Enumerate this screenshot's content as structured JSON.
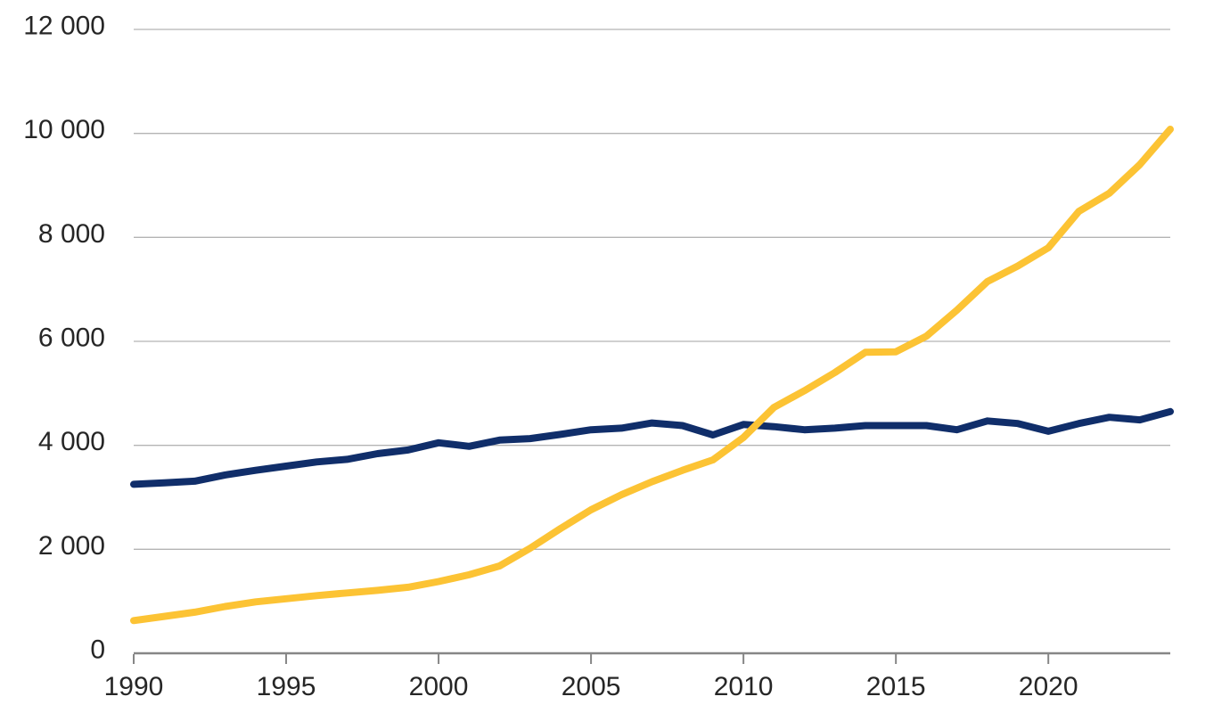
{
  "page": {
    "background_color": "#ffffff",
    "text_color": "#262626"
  },
  "chart_data": {
    "type": "line",
    "title": "",
    "xlabel": "",
    "ylabel": "",
    "legend": "none",
    "grid": "horizontal",
    "xlim": [
      1990,
      2024
    ],
    "ylim": [
      0,
      12000
    ],
    "x": [
      1990,
      1991,
      1992,
      1993,
      1994,
      1995,
      1996,
      1997,
      1998,
      1999,
      2000,
      2001,
      2002,
      2003,
      2004,
      2005,
      2006,
      2007,
      2008,
      2009,
      2010,
      2011,
      2012,
      2013,
      2014,
      2015,
      2016,
      2017,
      2018,
      2019,
      2020,
      2021,
      2022,
      2023,
      2024
    ],
    "series": [
      {
        "name": "dark-blue-line",
        "color": "#102e6a",
        "values": [
          3250,
          3280,
          3310,
          3430,
          3520,
          3600,
          3680,
          3730,
          3840,
          3910,
          4050,
          3980,
          4100,
          4130,
          4210,
          4300,
          4330,
          4430,
          4380,
          4200,
          4400,
          4360,
          4300,
          4330,
          4380,
          4380,
          4380,
          4300,
          4470,
          4420,
          4270,
          4420,
          4540,
          4490,
          4650
        ]
      },
      {
        "name": "yellow-line",
        "color": "#fcc334",
        "values": [
          630,
          710,
          790,
          900,
          990,
          1050,
          1110,
          1160,
          1210,
          1270,
          1380,
          1510,
          1680,
          2020,
          2400,
          2760,
          3050,
          3300,
          3520,
          3720,
          4150,
          4730,
          5050,
          5400,
          5790,
          5800,
          6100,
          6600,
          7150,
          7450,
          7800,
          8500,
          8850,
          9400,
          10080
        ]
      }
    ],
    "y_ticks": [
      {
        "value": 0,
        "label": "0"
      },
      {
        "value": 2000,
        "label": "2 000"
      },
      {
        "value": 4000,
        "label": "4 000"
      },
      {
        "value": 6000,
        "label": "6 000"
      },
      {
        "value": 8000,
        "label": "8 000"
      },
      {
        "value": 10000,
        "label": "10 000"
      },
      {
        "value": 12000,
        "label": "12 000"
      }
    ],
    "x_ticks": [
      {
        "value": 1990,
        "label": "1990"
      },
      {
        "value": 1995,
        "label": "1995"
      },
      {
        "value": 2000,
        "label": "2000"
      },
      {
        "value": 2005,
        "label": "2005"
      },
      {
        "value": 2010,
        "label": "2010"
      },
      {
        "value": 2015,
        "label": "2015"
      },
      {
        "value": 2020,
        "label": "2020"
      }
    ],
    "axis_color": "#868686",
    "gridline_color": "#b4b4b4",
    "tick_label_color": "#262626",
    "line_width": 8
  }
}
